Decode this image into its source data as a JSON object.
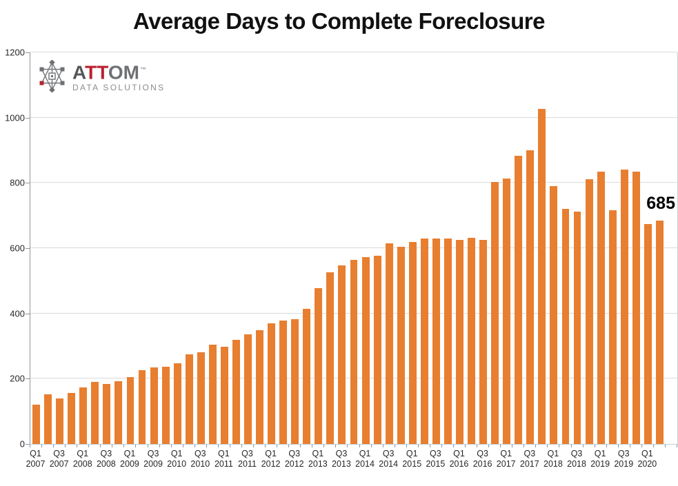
{
  "chart": {
    "title": "Average Days to Complete Foreclosure",
    "last_value_label": "685"
  },
  "logo": {
    "word_a": "A",
    "word_tt": "TT",
    "word_om": "OM",
    "tm": "™",
    "subtitle": "DATA SOLUTIONS"
  },
  "colors": {
    "bar_orange": "#E87E30",
    "attom_red": "#bb1f2e",
    "attom_gray": "#6e7073",
    "gridline": "#d8dbde",
    "tick_blue_gray": "#7e96ae"
  },
  "chart_data": {
    "type": "bar",
    "title": "Average Days to Complete Foreclosure",
    "xlabel": "",
    "ylabel": "",
    "ylim": [
      0,
      1200
    ],
    "yticks": [
      0,
      200,
      400,
      600,
      800,
      1000,
      1200
    ],
    "grid": true,
    "legend": false,
    "bar_color": "#E87E30",
    "x_tick_label_every": 2,
    "categories": [
      "Q1 2007",
      "Q2 2007",
      "Q3 2007",
      "Q4 2007",
      "Q1 2008",
      "Q2 2008",
      "Q3 2008",
      "Q4 2008",
      "Q1 2009",
      "Q2 2009",
      "Q3 2009",
      "Q4 2009",
      "Q1 2010",
      "Q2 2010",
      "Q3 2010",
      "Q4 2010",
      "Q1 2011",
      "Q2 2011",
      "Q3 2011",
      "Q4 2011",
      "Q1 2012",
      "Q2 2012",
      "Q3 2012",
      "Q4 2012",
      "Q1 2013",
      "Q2 2013",
      "Q3 2013",
      "Q4 2013",
      "Q1 2014",
      "Q2 2014",
      "Q3 2014",
      "Q4 2014",
      "Q1 2015",
      "Q2 2015",
      "Q3 2015",
      "Q4 2015",
      "Q1 2016",
      "Q2 2016",
      "Q3 2016",
      "Q4 2016",
      "Q1 2017",
      "Q2 2017",
      "Q3 2017",
      "Q4 2017",
      "Q1 2018",
      "Q2 2018",
      "Q3 2018",
      "Q4 2018",
      "Q1 2019",
      "Q2 2019",
      "Q3 2019",
      "Q4 2019",
      "Q1 2020",
      "Q2 2020"
    ],
    "values": [
      120,
      153,
      139,
      157,
      173,
      190,
      183,
      192,
      206,
      227,
      235,
      237,
      248,
      275,
      281,
      304,
      298,
      318,
      336,
      348,
      370,
      378,
      382,
      414,
      477,
      526,
      548,
      564,
      572,
      577,
      615,
      604,
      620,
      629,
      630,
      629,
      625,
      631,
      625,
      803,
      814,
      883,
      899,
      1027,
      791,
      720,
      713,
      811,
      835,
      716,
      841,
      834,
      673,
      685
    ],
    "annotation": {
      "text": "685",
      "target": "Q2 2020"
    }
  }
}
